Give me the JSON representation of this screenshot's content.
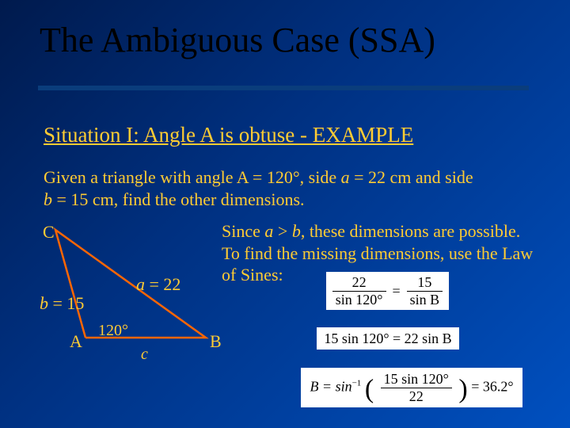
{
  "slide": {
    "title": "The Ambiguous Case (SSA)",
    "subtitle": "Situation I:  Angle A is obtuse - EXAMPLE",
    "given_line1": "Given a triangle with angle A = 120°, side ",
    "given_a": "a",
    "given_mid": " = 22 cm and side",
    "given_line2_b": "b",
    "given_line2_rest": " = 15 cm, find the other dimensions.",
    "since_line1a": "Since ",
    "since_a": "a",
    "since_gt": " > ",
    "since_b": "b",
    "since_line1b": ", these dimensions are possible.",
    "since_line2": "To find the missing dimensions, use the Law",
    "since_line3": "of Sines:"
  },
  "triangle": {
    "vertex_C": "C",
    "vertex_A": "A",
    "vertex_B": "B",
    "side_b_label_var": "b",
    "side_b_label_rest": " = 15",
    "side_a_label_var": "a",
    "side_a_label_rest": " = 22",
    "angle_A": "120°",
    "side_c_label": "c",
    "line_color": "#ff6600",
    "line_width": 2.5,
    "points": {
      "C": [
        20,
        12
      ],
      "A": [
        58,
        148
      ],
      "B": [
        210,
        148
      ]
    }
  },
  "math": {
    "eq1": {
      "num1": "22",
      "den1": "sin 120°",
      "eq": "=",
      "num2": "15",
      "den2": "sin B"
    },
    "eq2": "15 sin 120° = 22 sin B",
    "eq3": {
      "lhs": "B = sin",
      "sup": "−1",
      "open": "(",
      "num": "15 sin 120°",
      "den": "22",
      "close": ")",
      "rhs": " = 36.2°"
    }
  },
  "colors": {
    "text": "#ffcc33",
    "rule": "#0a3d7c",
    "triangle_stroke": "#ff6600",
    "math_bg": "#ffffff"
  }
}
